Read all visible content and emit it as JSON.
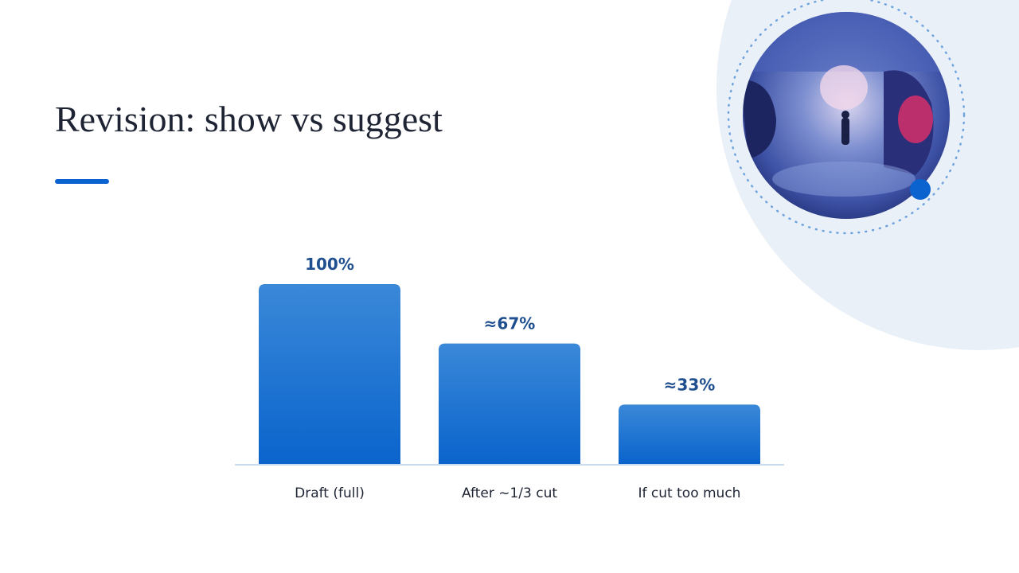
{
  "chart_data": {
    "type": "bar",
    "title": "Revision: show vs suggest",
    "categories": [
      "Draft (full)",
      "After ~1/3 cut",
      "If cut too much"
    ],
    "values": [
      100,
      67,
      33
    ],
    "value_labels": [
      "100%",
      "≈67%",
      "≈33%"
    ],
    "color": "#1a70d4"
  }
}
